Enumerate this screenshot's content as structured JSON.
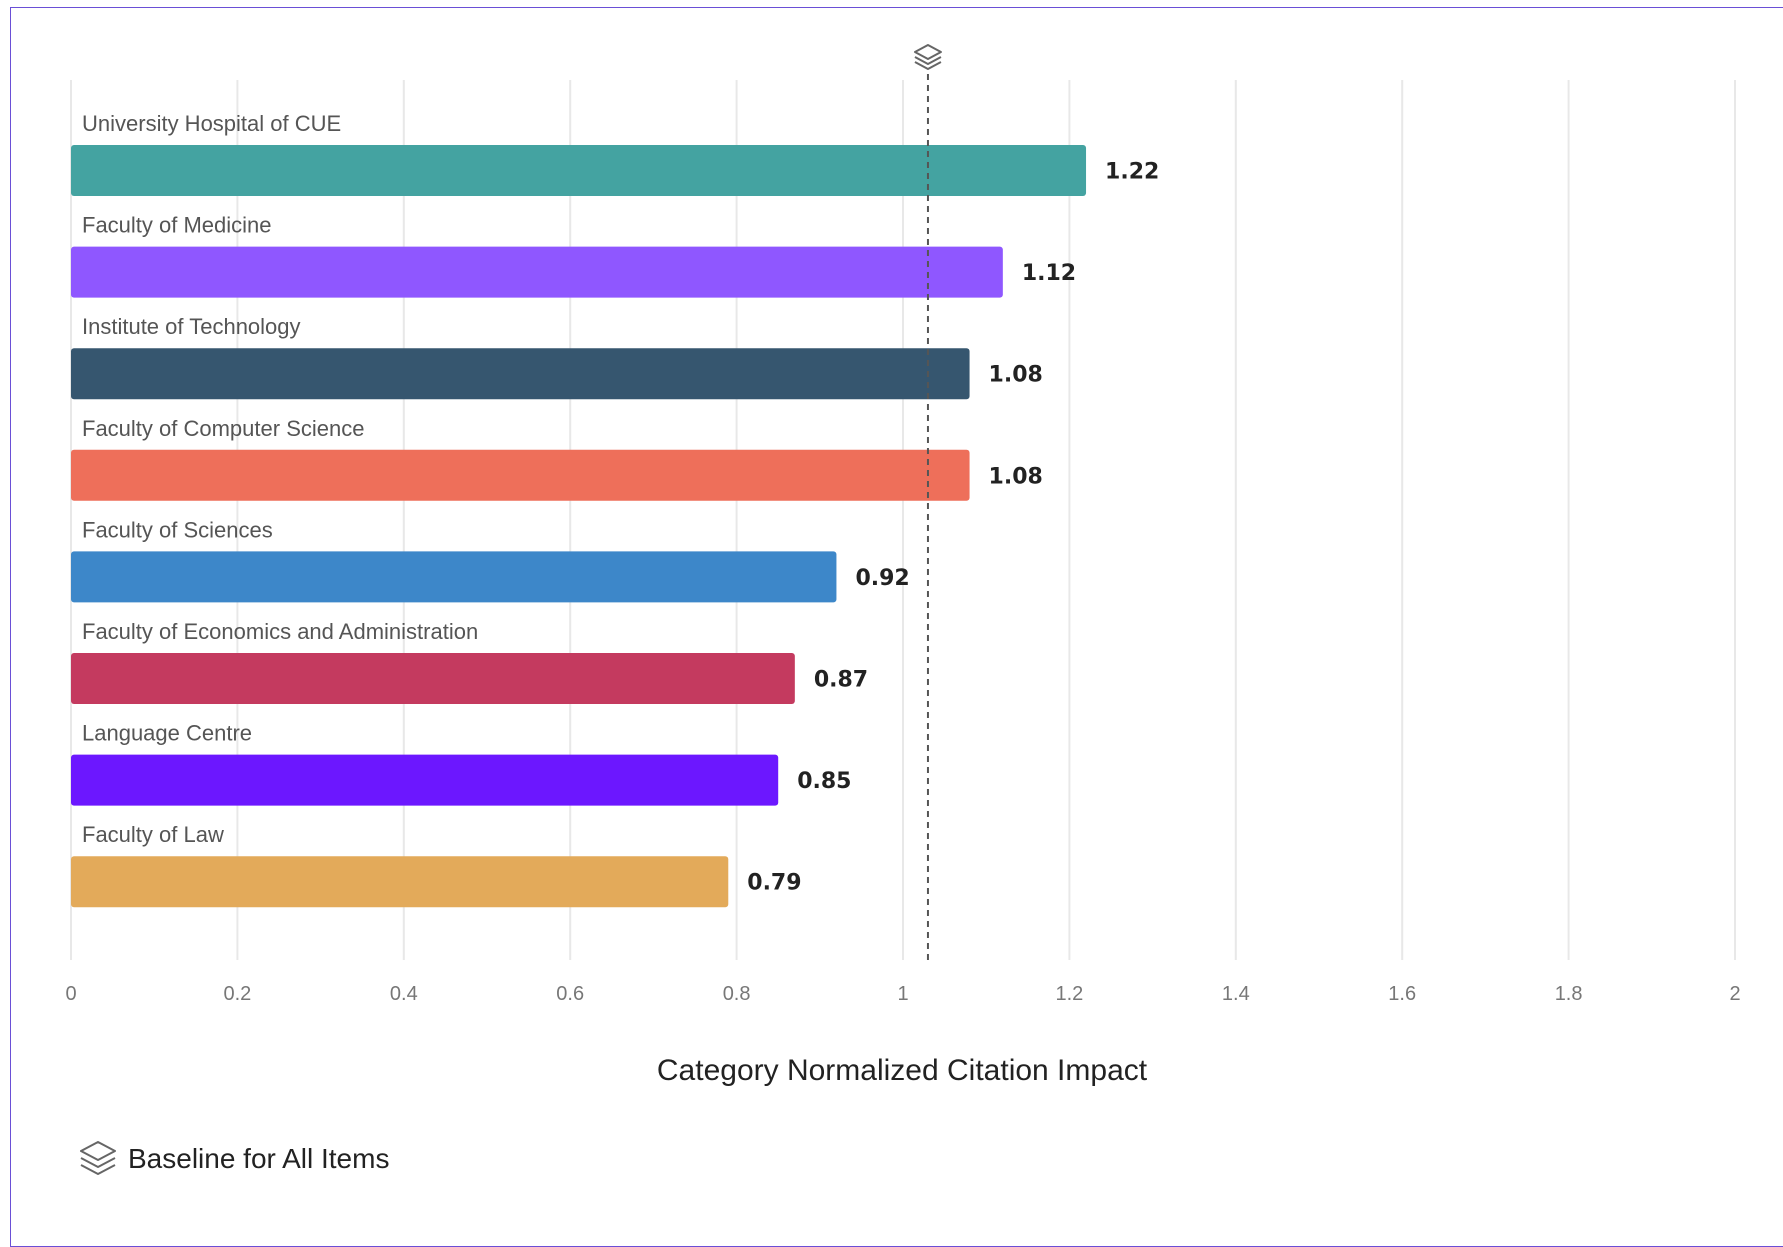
{
  "chart_data": {
    "type": "bar",
    "orientation": "horizontal",
    "categories": [
      "University Hospital of CUE",
      "Faculty of Medicine",
      "Institute of Technology",
      "Faculty of Computer Science",
      "Faculty of Sciences",
      "Faculty of Economics and Administration",
      "Language Centre",
      "Faculty of Law"
    ],
    "values": [
      1.22,
      1.12,
      1.08,
      1.08,
      0.92,
      0.87,
      0.85,
      0.79
    ],
    "value_labels": [
      "1.22",
      "1.12",
      "1.08",
      "1.08",
      "0.92",
      "0.87",
      "0.85",
      "0.79"
    ],
    "colors": [
      "#44a3a1",
      "#8f57ff",
      "#36566f",
      "#ee6f5a",
      "#3d87c9",
      "#c43a5f",
      "#6c17ff",
      "#e3aa5a"
    ],
    "xlabel": "Category Normalized Citation Impact",
    "xlim": [
      0,
      2
    ],
    "xticks": [
      0,
      0.2,
      0.4,
      0.6,
      0.8,
      1,
      1.2,
      1.4,
      1.6,
      1.8,
      2
    ],
    "xtick_labels": [
      "0",
      "0.2",
      "0.4",
      "0.6",
      "0.8",
      "1",
      "1.2",
      "1.4",
      "1.6",
      "1.8",
      "2"
    ],
    "baseline": {
      "value": 1.03,
      "label": "Baseline for All Items",
      "style": "dashed"
    },
    "grid": "vertical",
    "legend_placement": "bottom-left"
  }
}
